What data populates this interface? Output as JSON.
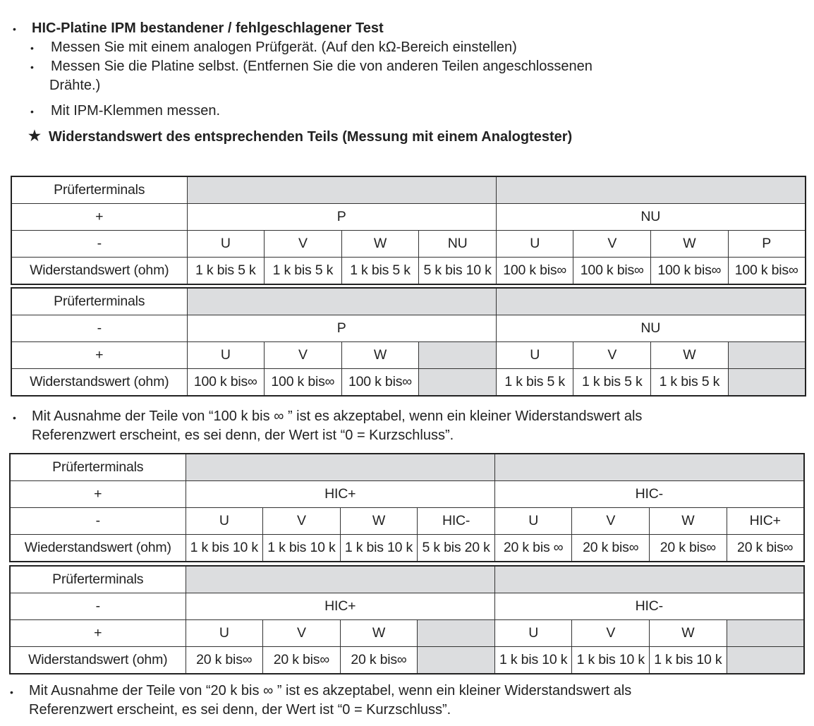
{
  "heading": "HIC-Platine IPM bestandener / fehlgeschlagener Test",
  "bullets": [
    "Messen Sie mit einem analogen Prüfgerät. (Auf den kΩ-Bereich einstellen)",
    "Messen Sie die Platine selbst. (Entfernen Sie die von anderen Teilen angeschlossenen",
    "Drähte.)",
    "Mit IPM-Klemmen messen."
  ],
  "star_icon": "★",
  "star_text": "Widerstandswert des entsprechenden Teils (Messung mit einem Analogtester)",
  "note1": [
    "Mit Ausnahme der Teile von “100 k bis ∞ ” ist es akzeptabel, wenn ein kleiner Widerstandswert als",
    "Referenzwert erscheint, es sei denn, der Wert ist “0 = Kurzschluss”."
  ],
  "note2": [
    "Mit Ausnahme der Teile von “20 k bis  ∞ ” ist es akzeptabel, wenn ein kleiner Widerstandswert als",
    "Referenzwert erscheint, es sei denn, der Wert ist “0 = Kurzschluss”."
  ],
  "gray_color": "#dcdddf",
  "tables": [
    {
      "header": "Prüferterminals",
      "row2_label": "+",
      "groups": [
        "P",
        "NU"
      ],
      "row3_label": "-",
      "terminals": [
        "U",
        "V",
        "W",
        "NU",
        "U",
        "V",
        "W",
        "P"
      ],
      "value_label": "Widerstandswert (ohm)",
      "values": [
        "1 k bis 5 k",
        "1 k bis 5 k",
        "1 k bis 5 k",
        "5 k bis 10 k",
        "100 k bis∞",
        "100 k bis∞",
        "100 k bis∞",
        "100 k bis∞"
      ]
    },
    {
      "header": "Prüferterminals",
      "row2_label": "-",
      "groups": [
        "P",
        "NU"
      ],
      "row3_label": "+",
      "terminals": [
        "U",
        "V",
        "W",
        null,
        "U",
        "V",
        "W",
        null
      ],
      "value_label": "Widerstandswert (ohm)",
      "values": [
        "100 k bis∞",
        "100 k bis∞",
        "100 k bis∞",
        null,
        "1 k bis 5 k",
        "1 k bis 5 k",
        "1 k bis 5 k",
        null
      ]
    },
    {
      "header": "Prüferterminals",
      "row2_label": "+",
      "groups": [
        "HIC+",
        "HIC-"
      ],
      "row3_label": "-",
      "terminals": [
        "U",
        "V",
        "W",
        "HIC-",
        "U",
        "V",
        "W",
        "HIC+"
      ],
      "value_label": "Wiederstandswert (ohm)",
      "values": [
        "1 k bis 10 k",
        "1 k bis 10 k",
        "1 k bis 10 k",
        "5 k bis 20 k",
        "20 k bis ∞",
        "20 k bis∞",
        "20 k bis∞",
        "20 k bis∞"
      ]
    },
    {
      "header": "Prüferterminals",
      "row2_label": "-",
      "groups": [
        "HIC+",
        "HIC-"
      ],
      "row3_label": "+",
      "terminals": [
        "U",
        "V",
        "W",
        null,
        "U",
        "V",
        "W",
        null
      ],
      "value_label": "Widerstandswert (ohm)",
      "values": [
        "20 k bis∞",
        "20 k bis∞",
        "20 k bis∞",
        null,
        "1 k bis 10 k",
        "1 k bis 10 k",
        "1 k bis 10 k",
        null
      ]
    }
  ]
}
